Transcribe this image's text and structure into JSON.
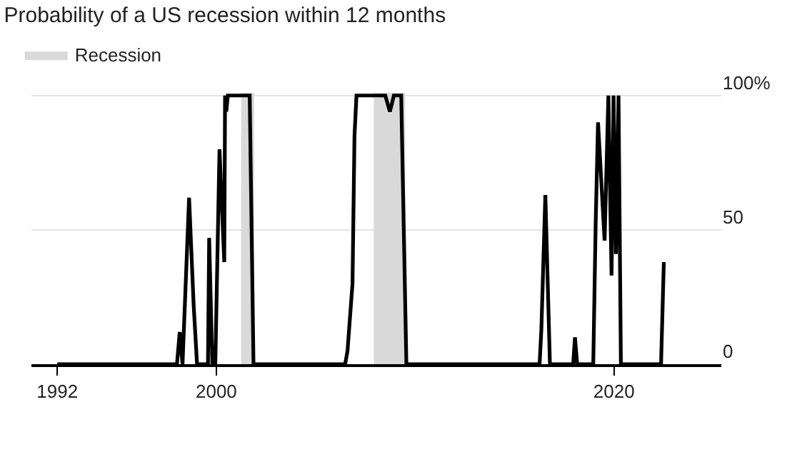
{
  "chart_data": {
    "type": "line",
    "title": "Probability of a US recession within 12 months",
    "x": [
      1992,
      1998.02,
      1998.16,
      1998.3,
      1998.63,
      1998.86,
      1999.03,
      1999.58,
      1999.64,
      1999.8,
      1999.95,
      2000.16,
      2000.4,
      2000.44,
      2000.5,
      2000.58,
      2000.66,
      2001.68,
      2001.87,
      2006.48,
      2006.6,
      2006.85,
      2006.95,
      2007.05,
      2008.5,
      2008.73,
      2008.93,
      2009.3,
      2009.56,
      2016.26,
      2016.35,
      2016.55,
      2016.78,
      2017.95,
      2018.04,
      2018.15,
      2018.96,
      2019.08,
      2019.2,
      2019.53,
      2019.72,
      2019.88,
      2019.98,
      2020.1,
      2020.23,
      2020.35,
      2022.37,
      2022.51
    ],
    "series": [
      {
        "color": "#000000",
        "values": [
          0,
          0,
          12,
          0,
          62,
          22,
          0,
          0,
          47,
          0,
          0,
          80,
          38,
          100,
          94,
          100,
          100,
          100,
          0,
          0,
          5,
          30,
          85,
          100,
          100,
          94,
          100,
          100,
          0,
          0,
          13,
          63,
          0,
          0,
          10,
          0,
          0,
          52,
          90,
          46,
          100,
          33,
          100,
          41,
          100,
          0,
          0,
          38
        ]
      }
    ],
    "bands": [
      {
        "axis": "x",
        "from": 2001.25,
        "to": 2001.9,
        "label": "Recession",
        "color": "#d9d9d9"
      },
      {
        "axis": "x",
        "from": 2007.92,
        "to": 2009.5,
        "label": null,
        "color": "#d9d9d9"
      }
    ],
    "xlim": [
      1990.7,
      2025.4
    ],
    "xticks": [
      1992,
      2000,
      2020
    ],
    "ylim": [
      0,
      101
    ],
    "yticks": [
      {
        "value": 0,
        "label": "0"
      },
      {
        "value": 50,
        "label": "50"
      },
      {
        "value": 100,
        "label": "100%"
      }
    ],
    "grid": "y",
    "legend": "top left",
    "marker": "none",
    "line_style": "solid"
  }
}
